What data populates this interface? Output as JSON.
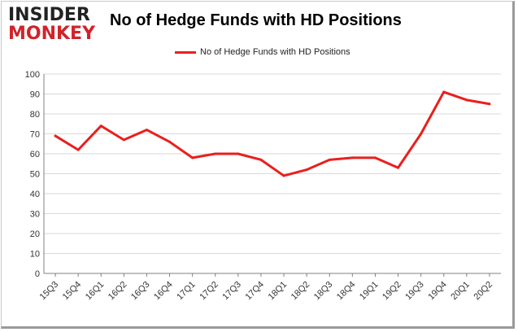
{
  "logo": {
    "top": "INSIDER",
    "bottom": "MONKEY"
  },
  "colors": {
    "series": "#e8201e",
    "grid": "#d9d9d9",
    "axis": "#808080",
    "brand_red": "#d1232a"
  },
  "chart_data": {
    "type": "line",
    "title": "No of Hedge Funds with HD Positions",
    "xlabel": "",
    "ylabel": "",
    "ylim": [
      0,
      100
    ],
    "yticks": [
      0,
      10,
      20,
      30,
      40,
      50,
      60,
      70,
      80,
      90,
      100
    ],
    "grid": true,
    "legend_position": "top-center",
    "categories": [
      "15Q3",
      "15Q4",
      "16Q1",
      "16Q2",
      "16Q3",
      "16Q4",
      "17Q1",
      "17Q2",
      "17Q3",
      "17Q4",
      "18Q1",
      "18Q2",
      "18Q3",
      "18Q4",
      "19Q1",
      "19Q2",
      "19Q3",
      "19Q4",
      "20Q1",
      "20Q2"
    ],
    "series": [
      {
        "name": "No of Hedge Funds with HD Positions",
        "values": [
          69,
          62,
          74,
          67,
          72,
          66,
          58,
          60,
          60,
          57,
          49,
          52,
          57,
          58,
          58,
          53,
          70,
          91,
          87,
          85
        ]
      }
    ]
  }
}
